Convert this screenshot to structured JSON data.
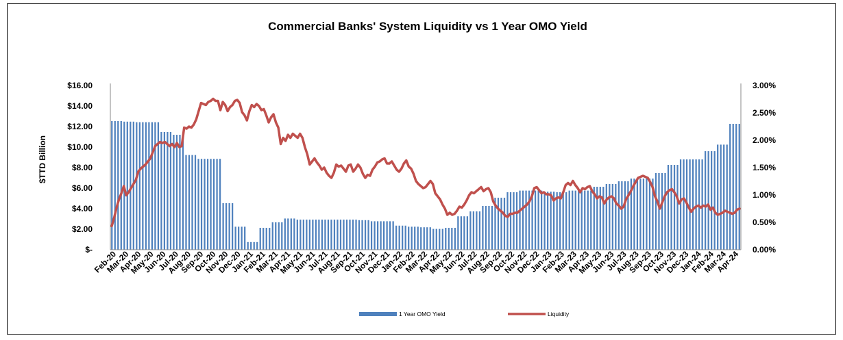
{
  "chart_data": {
    "type": "bar+line",
    "title": "Commercial Banks' System Liquidity vs 1 Year OMO Yield",
    "ylabel_left": "$TTD Billion",
    "ylabel_right": "",
    "xlabel": "",
    "left_ticks": [
      "$-",
      "$2.00",
      "$4.00",
      "$6.00",
      "$8.00",
      "$10.00",
      "$12.00",
      "$14.00",
      "$16.00"
    ],
    "right_ticks": [
      "0.00%",
      "0.50%",
      "1.00%",
      "1.50%",
      "2.00%",
      "2.50%",
      "3.00%"
    ],
    "ylim_left": [
      0,
      16
    ],
    "ylim_right": [
      0,
      3
    ],
    "categories": [
      "Feb-20",
      "Mar-20",
      "Apr-20",
      "May-20",
      "Jun-20",
      "Jul-20",
      "Aug-20",
      "Sep-20",
      "Oct-20",
      "Nov-20",
      "Dec-20",
      "Jan-21",
      "Feb-21",
      "Mar-21",
      "Apr-21",
      "May-21",
      "Jun-21",
      "Jul-21",
      "Aug-21",
      "Sep-21",
      "Oct-21",
      "Nov-21",
      "Dec-21",
      "Jan-22",
      "Feb-22",
      "Mar-22",
      "Apr-22",
      "May-22",
      "Jun-22",
      "Jul-22",
      "Aug-22",
      "Sep-22",
      "Oct-22",
      "Nov-22",
      "Dec-22",
      "Jan-23",
      "Feb-23",
      "Mar-23",
      "Apr-23",
      "May-23",
      "Jun-23",
      "Jul-23",
      "Aug-23",
      "Sep-23",
      "Oct-23",
      "Nov-23",
      "Dec-23",
      "Jan-24",
      "Feb-24",
      "Mar-24",
      "Apr-24"
    ],
    "legend": [
      {
        "label": "1 Year OMO Yield",
        "color": "#4f81bd",
        "kind": "bar"
      },
      {
        "label": "Liquidity",
        "color": "#c0504d",
        "kind": "line"
      }
    ],
    "legend_position": "bottom",
    "yield_monthly_pct": [
      2.35,
      2.34,
      2.33,
      2.33,
      2.15,
      2.1,
      1.73,
      1.66,
      1.66,
      0.85,
      0.42,
      0.14,
      0.4,
      0.5,
      0.57,
      0.55,
      0.55,
      0.55,
      0.55,
      0.55,
      0.54,
      0.52,
      0.52,
      0.44,
      0.42,
      0.41,
      0.38,
      0.4,
      0.61,
      0.7,
      0.8,
      0.95,
      1.05,
      1.08,
      1.08,
      1.06,
      1.05,
      1.08,
      1.08,
      1.15,
      1.2,
      1.25,
      1.3,
      1.3,
      1.4,
      1.55,
      1.65,
      1.65,
      1.8,
      1.92,
      2.3
    ],
    "liquidity_monthly_bn": [
      2.3,
      3.3,
      5.2,
      5.6,
      6.6,
      7.2,
      9.1,
      10.2,
      12.0,
      13.9,
      14.3,
      12.5,
      11.1,
      10.4,
      8.1,
      7.1,
      7.4,
      7.1,
      6.6,
      6.5,
      6.9,
      7.4,
      6.0,
      5.8,
      3.6,
      4.7,
      5.1,
      5.0,
      3.4,
      4.1,
      4.6,
      4.4,
      4.9,
      5.1,
      5.6,
      5.8,
      5.5,
      5.0,
      6.1,
      5.2,
      4.6,
      4.8,
      6.1,
      5.2,
      3.8,
      4.7,
      5.5,
      5.0,
      4.1,
      3.7,
      3.5
    ],
    "liquidity_weekly_bn": [
      2.3,
      3.1,
      4.1,
      4.9,
      5.5,
      6.2,
      5.3,
      5.6,
      6.0,
      6.4,
      6.8,
      7.6,
      7.9,
      8.1,
      8.3,
      8.6,
      8.9,
      9.5,
      10.1,
      10.3,
      10.5,
      10.4,
      10.5,
      10.3,
      10.1,
      10.3,
      10.0,
      10.4,
      10.0,
      10.1,
      11.9,
      11.8,
      12.0,
      11.9,
      12.2,
      12.7,
      13.5,
      14.3,
      14.2,
      14.1,
      14.4,
      14.5,
      14.7,
      14.5,
      14.5,
      13.6,
      14.4,
      14.1,
      13.5,
      13.9,
      14.1,
      14.5,
      14.6,
      14.3,
      13.4,
      13.1,
      12.6,
      13.5,
      14.1,
      13.9,
      14.2,
      14.0,
      13.6,
      13.7,
      13.1,
      12.4,
      12.9,
      13.2,
      12.4,
      11.9,
      10.3,
      10.9,
      10.6,
      11.2,
      10.9,
      11.3,
      11.1,
      10.9,
      11.3,
      10.9,
      10.0,
      9.3,
      8.3,
      8.6,
      8.9,
      8.5,
      8.2,
      7.8,
      8.0,
      7.5,
      7.2,
      7.0,
      7.5,
      8.3,
      8.1,
      8.2,
      7.9,
      7.6,
      8.2,
      8.3,
      7.6,
      7.9,
      8.3,
      8.0,
      7.4,
      7.0,
      7.3,
      7.2,
      7.8,
      8.1,
      8.5,
      8.6,
      8.8,
      8.9,
      8.4,
      8.4,
      8.6,
      8.2,
      7.8,
      7.6,
      7.9,
      8.4,
      8.7,
      8.1,
      7.9,
      7.4,
      6.7,
      6.4,
      6.2,
      6.0,
      6.1,
      6.4,
      6.7,
      6.4,
      5.5,
      5.2,
      4.9,
      4.4,
      4.0,
      3.4,
      3.6,
      3.4,
      3.5,
      3.8,
      4.2,
      4.1,
      4.4,
      4.8,
      5.3,
      5.6,
      5.5,
      5.7,
      5.9,
      6.1,
      5.7,
      5.9,
      6.0,
      5.6,
      4.7,
      4.3,
      4.0,
      3.8,
      3.6,
      3.3,
      3.2,
      3.5,
      3.5,
      3.6,
      3.6,
      3.8,
      4.0,
      4.2,
      4.4,
      4.7,
      5.2,
      6.0,
      6.1,
      5.8,
      5.5,
      5.6,
      5.4,
      5.4,
      5.3,
      4.8,
      5.0,
      5.1,
      5.0,
      5.6,
      6.3,
      6.5,
      6.3,
      6.7,
      6.3,
      6.0,
      5.6,
      6.0,
      5.9,
      6.1,
      6.2,
      5.7,
      5.4,
      5.0,
      5.2,
      5.1,
      4.5,
      4.9,
      5.1,
      5.2,
      5.0,
      4.5,
      4.3,
      4.0,
      4.2,
      4.9,
      5.3,
      5.7,
      6.2,
      6.6,
      7.0,
      7.1,
      7.2,
      7.1,
      7.0,
      6.6,
      6.1,
      5.2,
      4.7,
      4.0,
      4.6,
      5.2,
      5.6,
      5.8,
      5.9,
      5.6,
      5.2,
      4.5,
      4.9,
      5.0,
      4.6,
      4.1,
      3.7,
      4.0,
      4.2,
      4.3,
      4.1,
      4.3,
      4.2,
      4.4,
      3.9,
      4.1,
      3.6,
      3.4,
      3.5,
      3.6,
      3.8,
      3.7,
      3.6,
      3.5,
      3.6,
      3.9,
      4.0
    ]
  }
}
